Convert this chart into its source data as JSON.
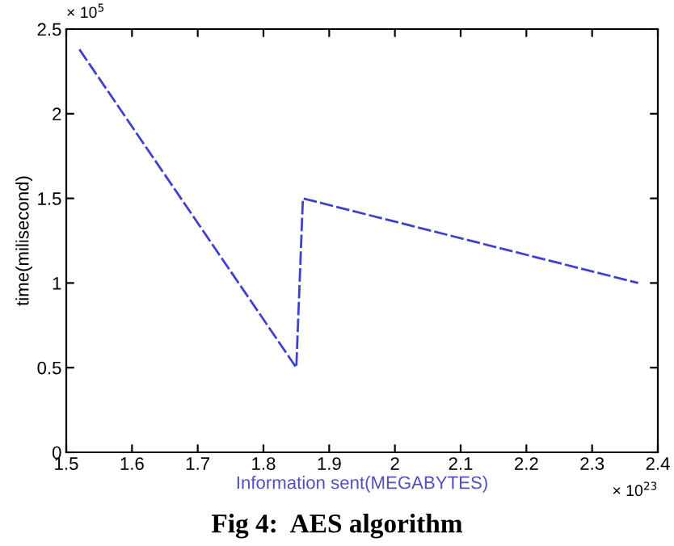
{
  "chart_data": {
    "type": "line",
    "xlabel": "Information sent(MEGABYTES)",
    "ylabel": "time(milisecond)",
    "x": [
      1.52,
      1.85,
      1.86,
      2.37
    ],
    "series": [
      {
        "color": "#4040d0",
        "values": [
          2.38,
          0.5,
          1.5,
          1.0
        ]
      }
    ],
    "xlim": [
      1.5,
      2.4
    ],
    "xticks": [
      1.5,
      1.6,
      1.7,
      1.8,
      1.9,
      2,
      2.1,
      2.2,
      2.3,
      2.4
    ],
    "ylim": [
      0,
      2.5
    ],
    "yticks": [
      0,
      0.5,
      1,
      1.5,
      2,
      2.5
    ],
    "line_style": "dashed",
    "grid": false,
    "legend": false,
    "annotations": [
      "× 10$^{5}$",
      "× 10$^{23}$",
      "Fig 4:  AES algorithm"
    ]
  }
}
